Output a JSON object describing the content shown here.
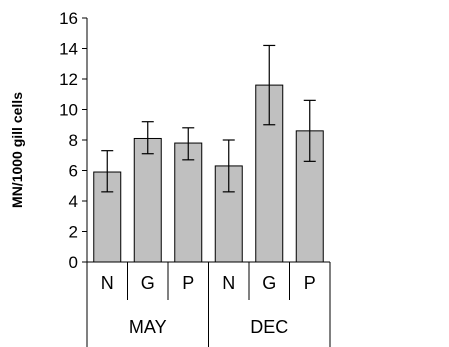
{
  "chart_data": {
    "type": "bar",
    "title": "",
    "xlabel": "",
    "ylabel": "MN/1000 gill cells",
    "ylim": [
      0,
      16
    ],
    "y_ticks": [
      0,
      2,
      4,
      6,
      8,
      10,
      12,
      14,
      16
    ],
    "grid": false,
    "legend": "none",
    "categories": [
      "N",
      "G",
      "P",
      "N",
      "G",
      "P"
    ],
    "groups": [
      {
        "label": "MAY",
        "categories": [
          "N",
          "G",
          "P"
        ]
      },
      {
        "label": "DEC",
        "categories": [
          "N",
          "G",
          "P"
        ]
      }
    ],
    "values": [
      5.9,
      8.1,
      7.8,
      6.3,
      11.6,
      8.6
    ],
    "error_low": [
      4.6,
      7.1,
      6.7,
      4.6,
      9.0,
      6.6
    ],
    "error_high": [
      7.3,
      9.2,
      8.8,
      8.0,
      14.2,
      10.6
    ],
    "colors": {
      "bar": "#c0c0c0",
      "axis": "#000000"
    }
  }
}
